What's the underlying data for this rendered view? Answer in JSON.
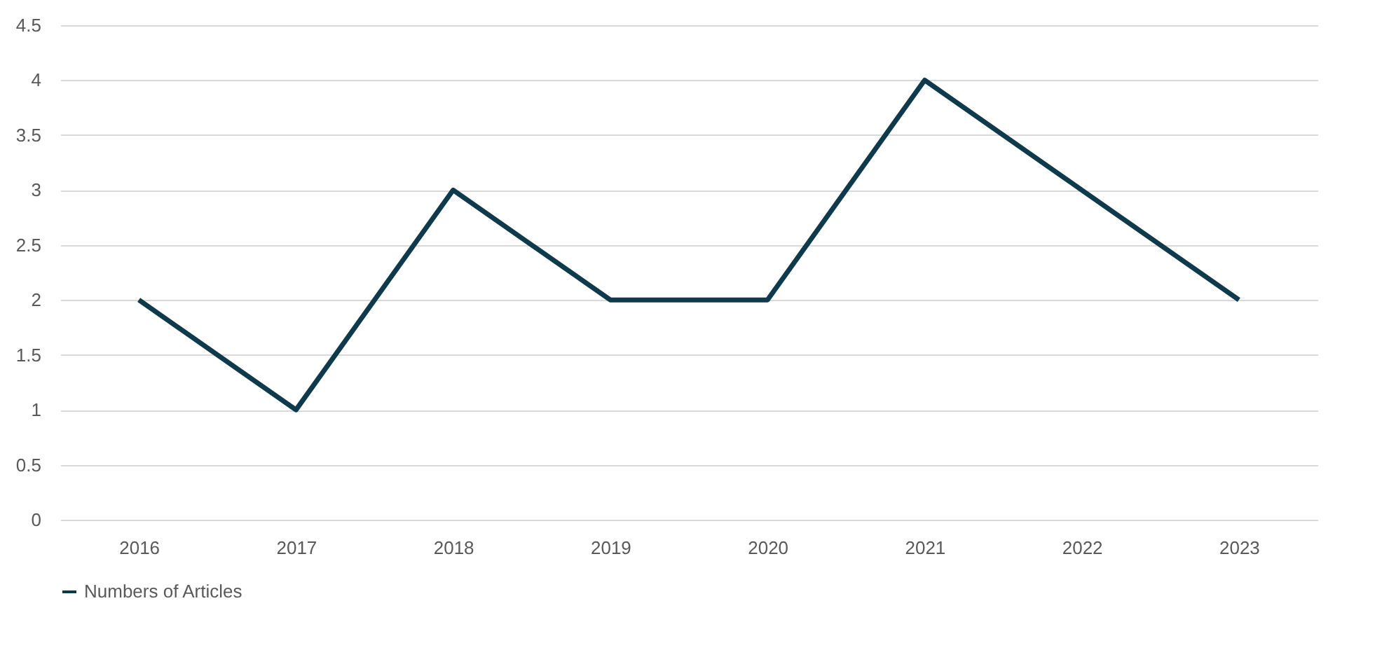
{
  "chart_data": {
    "type": "line",
    "categories": [
      "2016",
      "2017",
      "2018",
      "2019",
      "2020",
      "2021",
      "2022",
      "2023"
    ],
    "series": [
      {
        "name": "Numbers of Articles",
        "color": "#0e3a4c",
        "values": [
          2,
          1,
          3,
          2,
          2,
          4,
          3,
          2
        ]
      }
    ],
    "ylim": [
      0,
      4.5
    ],
    "yticks": [
      0,
      0.5,
      1,
      1.5,
      2,
      2.5,
      3,
      3.5,
      4,
      4.5
    ],
    "grid": "y",
    "legend": "bottom",
    "marker": "none",
    "line_style": "solid"
  }
}
